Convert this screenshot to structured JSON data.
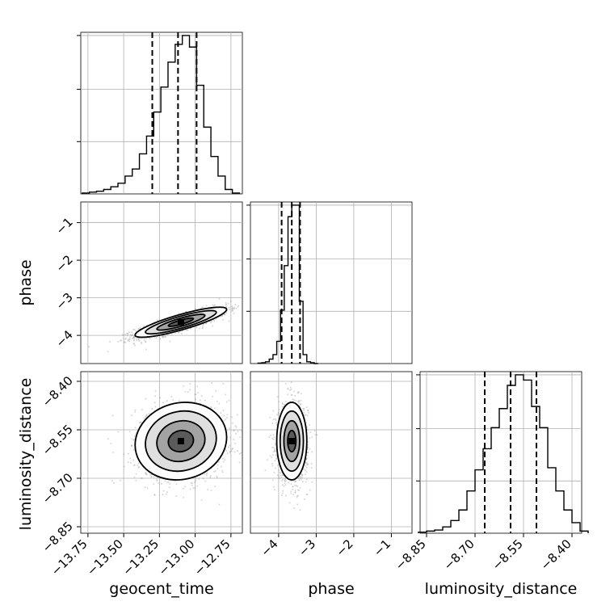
{
  "chart_data": {
    "type": "corner",
    "grid": true,
    "parameters": [
      {
        "key": "geocent_time",
        "label": "geocent_time",
        "range": [
          -13.8,
          -12.67
        ],
        "ticks": [
          -13.75,
          -13.5,
          -13.25,
          -13.0,
          -12.75
        ],
        "tick_labels": [
          "−13.75",
          "−13.50",
          "−13.25",
          "−13.00",
          "−12.75"
        ],
        "quantiles": [
          -13.3,
          -13.12,
          -12.99
        ],
        "mean": -13.1,
        "sd": 0.16
      },
      {
        "key": "phase",
        "label": "phase",
        "range": [
          -4.75,
          -0.45
        ],
        "ticks": [
          -4,
          -3,
          -2,
          -1
        ],
        "tick_labels": [
          "−4",
          "−3",
          "−2",
          "−1"
        ],
        "quantiles": [
          -3.92,
          -3.65,
          -3.43
        ],
        "mean": -3.65,
        "sd": 0.2
      },
      {
        "key": "luminosity_distance",
        "label": "luminosity_distance",
        "range": [
          -8.87,
          -8.37
        ],
        "ticks": [
          -8.85,
          -8.7,
          -8.55,
          -8.4
        ],
        "tick_labels": [
          "−8.85",
          "−8.70",
          "−8.55",
          "−8.40"
        ],
        "quantiles": [
          -8.67,
          -8.59,
          -8.51
        ],
        "mean": -8.585,
        "sd": 0.06
      }
    ],
    "histograms": [
      {
        "param": "geocent_time",
        "bins": [
          -13.79,
          -13.74,
          -13.69,
          -13.64,
          -13.59,
          -13.54,
          -13.49,
          -13.44,
          -13.39,
          -13.34,
          -13.29,
          -13.24,
          -13.19,
          -13.14,
          -13.09,
          -13.04,
          -12.99,
          -12.94,
          -12.89,
          -12.84,
          -12.79,
          -12.74
        ],
        "counts": [
          1,
          2,
          3,
          5,
          8,
          12,
          20,
          28,
          45,
          65,
          92,
          120,
          148,
          168,
          178,
          165,
          122,
          75,
          42,
          20,
          5,
          1
        ]
      },
      {
        "param": "phase",
        "bins": [
          -4.55,
          -4.45,
          -4.35,
          -4.25,
          -4.15,
          -4.05,
          -3.95,
          -3.85,
          -3.75,
          -3.65,
          -3.55,
          -3.45,
          -3.35,
          -3.25,
          -3.15,
          -3.05
        ],
        "counts": [
          0.5,
          1,
          2,
          5,
          10,
          25,
          60,
          110,
          165,
          178,
          178,
          70,
          10,
          2,
          1,
          0
        ]
      },
      {
        "param": "luminosity_distance",
        "bins": [
          -8.875,
          -8.85,
          -8.825,
          -8.8,
          -8.775,
          -8.75,
          -8.725,
          -8.7,
          -8.675,
          -8.65,
          -8.625,
          -8.6,
          -8.575,
          -8.55,
          -8.525,
          -8.5,
          -8.475,
          -8.45,
          -8.425,
          -8.4,
          -8.375
        ],
        "counts": [
          1,
          2,
          3,
          6,
          12,
          22,
          40,
          60,
          80,
          100,
          118,
          140,
          150,
          145,
          120,
          100,
          62,
          40,
          22,
          10,
          2
        ]
      }
    ],
    "scatter_pairs": [
      {
        "x": "geocent_time",
        "y": "phase",
        "correlation": 0.85
      },
      {
        "x": "geocent_time",
        "y": "luminosity_distance",
        "correlation": 0.1
      },
      {
        "x": "phase",
        "y": "luminosity_distance",
        "correlation": 0.0
      }
    ]
  }
}
